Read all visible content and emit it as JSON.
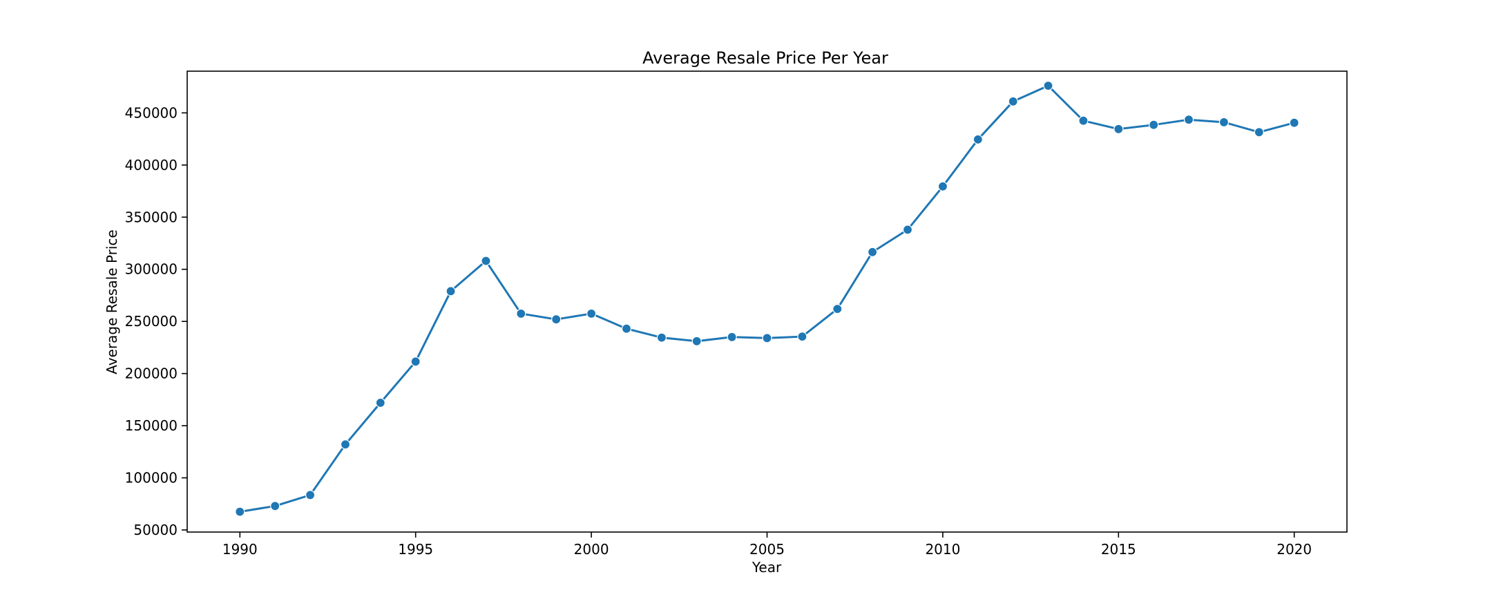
{
  "chart_data": {
    "type": "line",
    "title": "Average Resale Price Per Year",
    "xlabel": "Year",
    "ylabel": "Average Resale Price",
    "x": [
      1990,
      1991,
      1992,
      1993,
      1994,
      1995,
      1996,
      1997,
      1998,
      1999,
      2000,
      2001,
      2002,
      2003,
      2004,
      2005,
      2006,
      2007,
      2008,
      2009,
      2010,
      2011,
      2012,
      2013,
      2014,
      2015,
      2016,
      2017,
      2018,
      2019,
      2020
    ],
    "values": [
      67500,
      73000,
      83500,
      132000,
      172000,
      211500,
      279000,
      308000,
      257500,
      252000,
      257500,
      243000,
      234500,
      231000,
      235000,
      234000,
      235500,
      262000,
      316500,
      338000,
      379500,
      424500,
      461000,
      476000,
      442500,
      434500,
      438500,
      443500,
      441000,
      431500,
      440500
    ],
    "xlim": [
      1988.5,
      2021.5
    ],
    "ylim": [
      48000,
      490000
    ],
    "xticks": [
      1990,
      1995,
      2000,
      2005,
      2010,
      2015,
      2020
    ],
    "yticks": [
      50000,
      100000,
      150000,
      200000,
      250000,
      300000,
      350000,
      400000,
      450000
    ],
    "grid": false,
    "legend": "none",
    "color": "#1f77b4"
  }
}
